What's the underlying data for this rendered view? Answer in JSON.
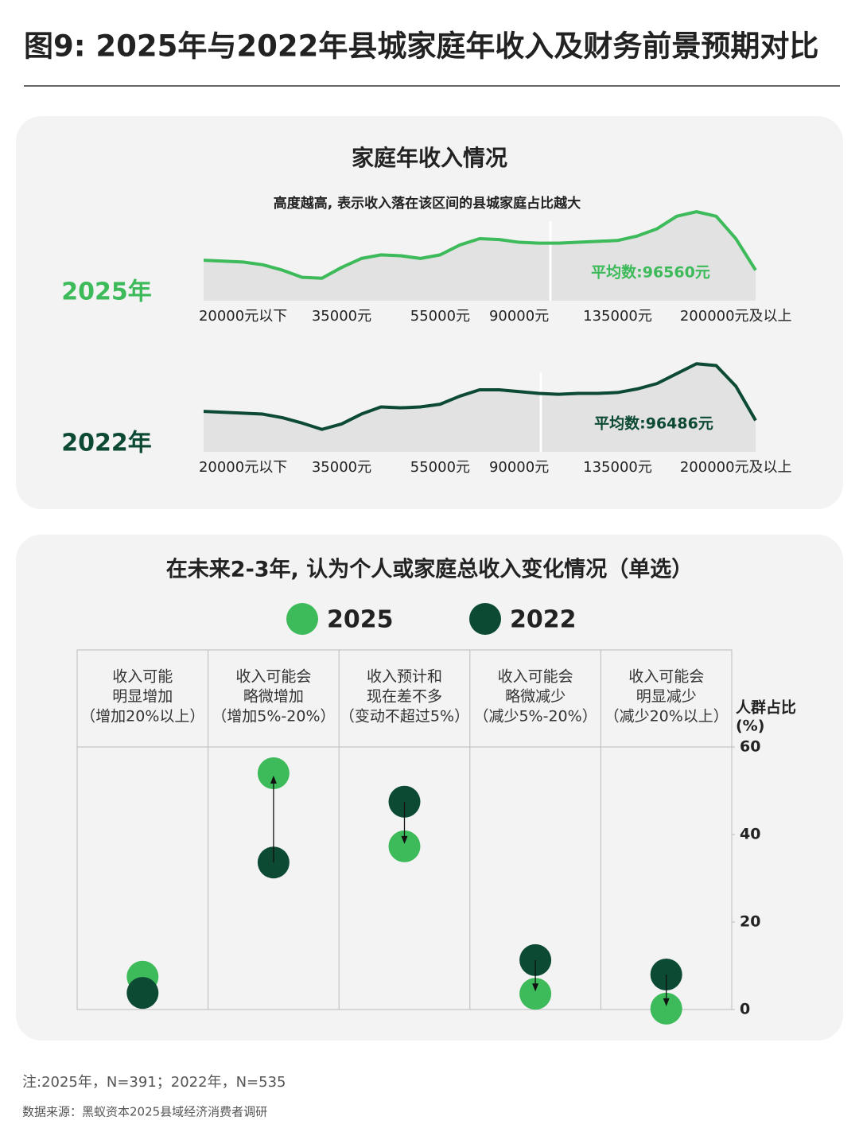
{
  "title": "图9: 2025年与2022年县城家庭年收入及财务前景预期对比",
  "panel": {
    "title": "家庭年收入情况",
    "subtitle": "高度越高, 表示收入落在该区间的县城家庭占比越大"
  },
  "chart_data": [
    {
      "type": "area",
      "ylim": [
        0,
        100
      ],
      "categories": [
        null,
        null,
        "20000元以下",
        null,
        null,
        null,
        null,
        "35000元",
        null,
        null,
        null,
        null,
        "55000元",
        null,
        null,
        null,
        "90000元",
        null,
        null,
        null,
        null,
        "135000元",
        null,
        null,
        null,
        null,
        null,
        "200000元及以上",
        null
      ],
      "series": [
        {
          "name": "2025年",
          "color": "#3dba5a",
          "values": [
            45,
            44,
            43,
            40,
            34,
            26,
            25,
            37,
            47,
            51,
            50,
            47,
            51,
            62,
            69,
            68,
            65,
            64,
            64,
            65,
            66,
            67,
            72,
            80,
            94,
            99,
            94,
            69,
            34
          ]
        }
      ],
      "annotation": "平均数:96560元"
    },
    {
      "type": "area",
      "ylim": [
        0,
        100
      ],
      "categories": [
        null,
        null,
        "20000元以下",
        null,
        null,
        null,
        null,
        "35000元",
        null,
        null,
        null,
        null,
        "55000元",
        null,
        null,
        null,
        "90000元",
        null,
        null,
        null,
        null,
        "135000元",
        null,
        null,
        null,
        null,
        null,
        "200000元及以上",
        null
      ],
      "series": [
        {
          "name": "2022年",
          "color": "#0d4a33",
          "values": [
            45,
            44,
            43,
            42,
            38,
            32,
            25,
            31,
            42,
            50,
            49,
            50,
            53,
            62,
            69,
            69,
            67,
            65,
            64,
            65,
            65,
            66,
            70,
            76,
            87,
            98,
            96,
            73,
            35
          ]
        }
      ],
      "annotation": "平均数:96486元"
    },
    {
      "type": "dumbbell",
      "title": "在未来2-3年, 认为个人或家庭总收入变化情况（单选）",
      "categories": [
        [
          "收入可能",
          "明显增加",
          "（增加20%以上）"
        ],
        [
          "收入可能会",
          "略微增加",
          "（增加5%-20%）"
        ],
        [
          "收入预计和",
          "现在差不多",
          "（变动不超过5%）"
        ],
        [
          "收入可能会",
          "略微减少",
          "（减少5%-20%）"
        ],
        [
          "收入可能会",
          "明显减少",
          "（减少20%以上）"
        ]
      ],
      "ylabel": [
        "人群占比",
        "(%)"
      ],
      "ylim": [
        0,
        60
      ],
      "yticks": [
        0,
        20,
        40,
        60
      ],
      "series": [
        {
          "name": "2025",
          "color": "#3dba5a",
          "values": [
            7.5,
            54,
            37.3,
            3.6,
            0.2
          ]
        },
        {
          "name": "2022",
          "color": "#0d4a33",
          "values": [
            3.8,
            33.6,
            47.5,
            11.3,
            8
          ]
        }
      ]
    }
  ],
  "note": "注:2025年，N=391；2022年，N=535",
  "source": "数据来源：黑蚁资本2025县域经济消费者调研"
}
